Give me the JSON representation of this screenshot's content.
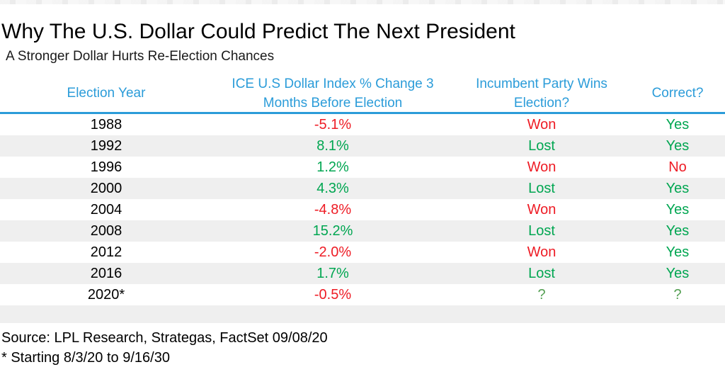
{
  "page": {
    "title": "Why The U.S. Dollar Could Predict The Next President",
    "subtitle": "A Stronger Dollar Hurts Re-Election Chances"
  },
  "colors": {
    "header_blue": "#2B9CD9",
    "negative_red": "#EE1C25",
    "positive_green": "#00A651",
    "unknown_olive": "#55A054",
    "row_alt_gray": "#EFEFEF"
  },
  "table": {
    "columns": [
      {
        "label": "Election Year"
      },
      {
        "label": "ICE U.S Dollar Index % Change 3\nMonths Before Election"
      },
      {
        "label": "Incumbent Party Wins\nElection?"
      },
      {
        "label": "Correct?"
      }
    ],
    "rows": [
      {
        "year": "1988",
        "change": "-5.1%",
        "change_color": "red",
        "incumbent": "Won",
        "incumbent_color": "red",
        "correct": "Yes",
        "correct_color": "green"
      },
      {
        "year": "1992",
        "change": "8.1%",
        "change_color": "green",
        "incumbent": "Lost",
        "incumbent_color": "green",
        "correct": "Yes",
        "correct_color": "green"
      },
      {
        "year": "1996",
        "change": "1.2%",
        "change_color": "green",
        "incumbent": "Won",
        "incumbent_color": "red",
        "correct": "No",
        "correct_color": "red"
      },
      {
        "year": "2000",
        "change": "4.3%",
        "change_color": "green",
        "incumbent": "Lost",
        "incumbent_color": "green",
        "correct": "Yes",
        "correct_color": "green"
      },
      {
        "year": "2004",
        "change": "-4.8%",
        "change_color": "red",
        "incumbent": "Won",
        "incumbent_color": "red",
        "correct": "Yes",
        "correct_color": "green"
      },
      {
        "year": "2008",
        "change": "15.2%",
        "change_color": "green",
        "incumbent": "Lost",
        "incumbent_color": "green",
        "correct": "Yes",
        "correct_color": "green"
      },
      {
        "year": "2012",
        "change": "-2.0%",
        "change_color": "red",
        "incumbent": "Won",
        "incumbent_color": "red",
        "correct": "Yes",
        "correct_color": "green"
      },
      {
        "year": "2016",
        "change": "1.7%",
        "change_color": "green",
        "incumbent": "Lost",
        "incumbent_color": "green",
        "correct": "Yes",
        "correct_color": "green"
      },
      {
        "year": "2020*",
        "change": "-0.5%",
        "change_color": "red",
        "incumbent": "?",
        "incumbent_color": "olive",
        "correct": "?",
        "correct_color": "olive"
      }
    ]
  },
  "footer": {
    "source": "Source: LPL Research, Strategas, FactSet 09/08/20",
    "footnote": "* Starting 8/3/20 to 9/16/30"
  },
  "chart_data": {
    "type": "table",
    "title": "Why The U.S. Dollar Could Predict The Next President",
    "subtitle": "A Stronger Dollar Hurts Re-Election Chances",
    "columns": [
      "Election Year",
      "ICE U.S Dollar Index % Change 3 Months Before Election",
      "Incumbent Party Wins Election?",
      "Correct?"
    ],
    "rows": [
      [
        "1988",
        -5.1,
        "Won",
        "Yes"
      ],
      [
        "1992",
        8.1,
        "Lost",
        "Yes"
      ],
      [
        "1996",
        1.2,
        "Won",
        "No"
      ],
      [
        "2000",
        4.3,
        "Lost",
        "Yes"
      ],
      [
        "2004",
        -4.8,
        "Won",
        "Yes"
      ],
      [
        "2008",
        15.2,
        "Lost",
        "Yes"
      ],
      [
        "2012",
        -2.0,
        "Won",
        "Yes"
      ],
      [
        "2016",
        1.7,
        "Lost",
        "Yes"
      ],
      [
        "2020*",
        -0.5,
        "?",
        "?"
      ]
    ],
    "notes": [
      "Source: LPL Research, Strategas, FactSet 09/08/20",
      "* Starting 8/3/20 to 9/16/30"
    ],
    "color_coding": "negative % / Won / No = red; positive % / Lost / Yes = green; unknown = olive ?"
  }
}
